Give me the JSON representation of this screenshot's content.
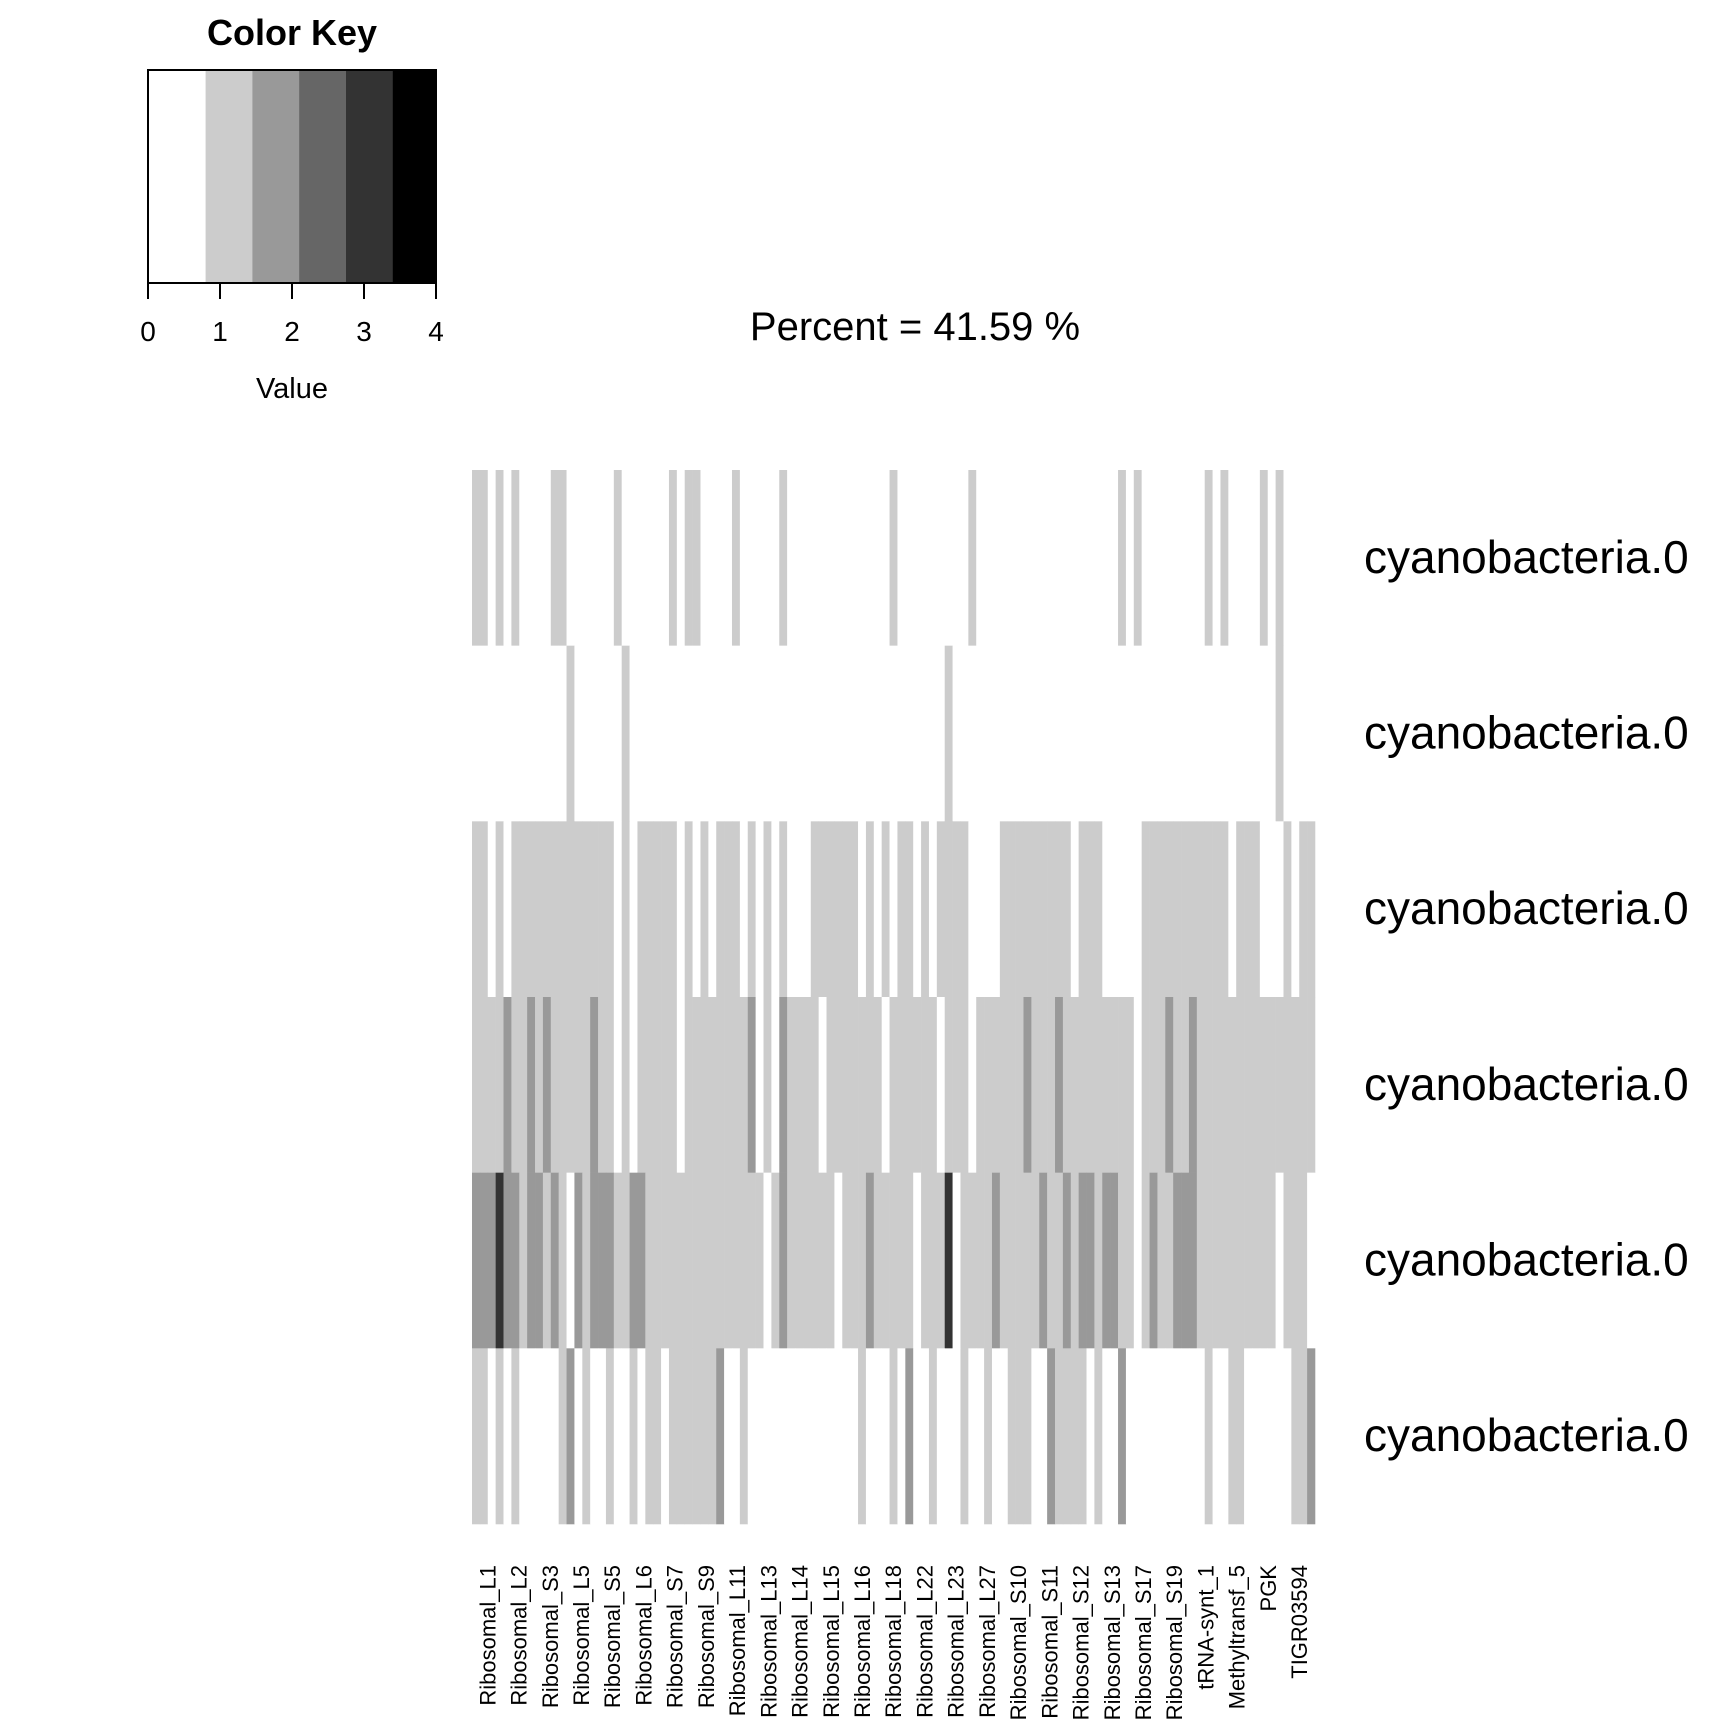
{
  "chart_data": {
    "type": "heatmap",
    "title": "Percent =  41.59 %",
    "color_key": {
      "title": "Color Key",
      "xlabel": "Value",
      "ticks": [
        "0",
        "1",
        "2",
        "3",
        "4"
      ],
      "range": [
        0,
        4
      ],
      "bands": [
        {
          "from": 0.0,
          "to": 0.8,
          "color": "#ffffff"
        },
        {
          "from": 0.8,
          "to": 1.45,
          "color": "#cccccc"
        },
        {
          "from": 1.45,
          "to": 2.1,
          "color": "#999999"
        },
        {
          "from": 2.1,
          "to": 2.75,
          "color": "#666666"
        },
        {
          "from": 2.75,
          "to": 3.4,
          "color": "#333333"
        },
        {
          "from": 3.4,
          "to": 4.0,
          "color": "#000000"
        }
      ]
    },
    "rows": [
      "cyanobacteria.0",
      "cyanobacteria.0",
      "cyanobacteria.0",
      "cyanobacteria.0",
      "cyanobacteria.0",
      "cyanobacteria.0"
    ],
    "column_labels_visible": [
      "Ribosomal_L1",
      "Ribosomal_L2",
      "Ribosomal_S3",
      "Ribosomal_L5",
      "Ribosomal_S5",
      "Ribosomal_L6",
      "Ribosomal_S7",
      "Ribosomal_S9",
      "Ribosomal_L11",
      "Ribosomal_L13",
      "Ribosomal_L14",
      "Ribosomal_L15",
      "Ribosomal_L16",
      "Ribosomal_L18",
      "Ribosomal_L22",
      "Ribosomal_L23",
      "Ribosomal_L27",
      "Ribosomal_S10",
      "Ribosomal_S11",
      "Ribosomal_S12",
      "Ribosomal_S13",
      "Ribosomal_S17",
      "Ribosomal_S19",
      "tRNA-synt_1",
      "Methyltransf_5",
      "PGK",
      "TIGR03594"
    ],
    "num_columns": 107,
    "values": [
      [
        1,
        1,
        0,
        1,
        0,
        1,
        0,
        0,
        0,
        0,
        1,
        1,
        0,
        0,
        0,
        0,
        0,
        0,
        1,
        0,
        0,
        0,
        0,
        0,
        0,
        1,
        0,
        1,
        1,
        0,
        0,
        0,
        0,
        1,
        0,
        0,
        0,
        0,
        0,
        1,
        0,
        0,
        0,
        0,
        0,
        0,
        0,
        0,
        0,
        0,
        0,
        0,
        0,
        1,
        0,
        0,
        0,
        0,
        0,
        0,
        0,
        0,
        0,
        1,
        0,
        0,
        0,
        0,
        0,
        0,
        0,
        0,
        0,
        0,
        0,
        0,
        0,
        0,
        0,
        0,
        0,
        0,
        1,
        0,
        1,
        0,
        0,
        0,
        0,
        0,
        0,
        0,
        0,
        1,
        0,
        1,
        0,
        0,
        0,
        0,
        1,
        0,
        1,
        0,
        0,
        0,
        0
      ],
      [
        0,
        0,
        0,
        0,
        0,
        0,
        0,
        0,
        0,
        0,
        0,
        0,
        1,
        0,
        0,
        0,
        0,
        0,
        0,
        1,
        0,
        0,
        0,
        0,
        0,
        0,
        0,
        0,
        0,
        0,
        0,
        0,
        0,
        0,
        0,
        0,
        0,
        0,
        0,
        0,
        0,
        0,
        0,
        0,
        0,
        0,
        0,
        0,
        0,
        0,
        0,
        0,
        0,
        0,
        0,
        0,
        0,
        0,
        0,
        0,
        1,
        0,
        0,
        0,
        0,
        0,
        0,
        0,
        0,
        0,
        0,
        0,
        0,
        0,
        0,
        0,
        0,
        0,
        0,
        0,
        0,
        0,
        0,
        0,
        0,
        0,
        0,
        0,
        0,
        0,
        0,
        0,
        0,
        0,
        0,
        0,
        0,
        0,
        0,
        0,
        0,
        0,
        1,
        0,
        0,
        0,
        0
      ],
      [
        1,
        1,
        0,
        1,
        0,
        1,
        1,
        1,
        1,
        1,
        1,
        1,
        1,
        1,
        1,
        1,
        1,
        1,
        0,
        1,
        0,
        1,
        1,
        1,
        1,
        1,
        0,
        1,
        0,
        1,
        0,
        1,
        1,
        1,
        0,
        1,
        0,
        1,
        0,
        1,
        0,
        0,
        0,
        1,
        1,
        1,
        1,
        1,
        1,
        0,
        1,
        0,
        1,
        0,
        1,
        1,
        0,
        1,
        0,
        1,
        1,
        1,
        1,
        0,
        0,
        0,
        0,
        1,
        1,
        1,
        1,
        1,
        1,
        1,
        1,
        1,
        0,
        1,
        1,
        1,
        0,
        0,
        0,
        0,
        0,
        1,
        1,
        1,
        1,
        1,
        1,
        1,
        1,
        1,
        1,
        1,
        0,
        1,
        1,
        1,
        0,
        0,
        0,
        1,
        0,
        1,
        1
      ],
      [
        1,
        1,
        1,
        1,
        2,
        1,
        1,
        2,
        1,
        2,
        1,
        1,
        1,
        1,
        1,
        2,
        1,
        1,
        0,
        1,
        0,
        1,
        1,
        1,
        1,
        1,
        0,
        1,
        1,
        1,
        1,
        1,
        1,
        1,
        1,
        2,
        0,
        1,
        0,
        2,
        1,
        1,
        1,
        1,
        0,
        1,
        1,
        1,
        1,
        1,
        1,
        1,
        0,
        1,
        1,
        1,
        1,
        1,
        1,
        0,
        1,
        1,
        1,
        0,
        1,
        1,
        1,
        1,
        1,
        1,
        2,
        1,
        1,
        1,
        2,
        1,
        1,
        1,
        1,
        1,
        1,
        1,
        1,
        1,
        0,
        1,
        1,
        1,
        2,
        1,
        1,
        2,
        1,
        1,
        1,
        1,
        1,
        1,
        1,
        1,
        1,
        1,
        1,
        1,
        1,
        1,
        1
      ],
      [
        2,
        2,
        2,
        3,
        2,
        2,
        1,
        2,
        2,
        1,
        2,
        1,
        0,
        2,
        1,
        2,
        2,
        2,
        1,
        1,
        2,
        2,
        1,
        1,
        1,
        1,
        1,
        1,
        1,
        1,
        1,
        1,
        1,
        1,
        1,
        1,
        1,
        0,
        1,
        2,
        1,
        1,
        1,
        1,
        1,
        1,
        0,
        1,
        1,
        1,
        2,
        1,
        1,
        1,
        1,
        1,
        0,
        1,
        1,
        1,
        3,
        0,
        1,
        1,
        1,
        1,
        2,
        1,
        1,
        1,
        1,
        1,
        2,
        1,
        1,
        2,
        1,
        2,
        2,
        1,
        2,
        2,
        1,
        1,
        0,
        1,
        2,
        1,
        1,
        2,
        2,
        2,
        1,
        1,
        1,
        1,
        1,
        1,
        1,
        1,
        1,
        1,
        0,
        1,
        1,
        1,
        0
      ],
      [
        1,
        1,
        0,
        1,
        0,
        1,
        0,
        0,
        0,
        0,
        0,
        1,
        2,
        0,
        1,
        0,
        0,
        1,
        0,
        0,
        1,
        0,
        1,
        1,
        0,
        1,
        1,
        1,
        1,
        1,
        1,
        2,
        0,
        0,
        1,
        0,
        0,
        0,
        0,
        0,
        0,
        0,
        0,
        0,
        0,
        0,
        0,
        0,
        0,
        1,
        0,
        0,
        0,
        1,
        0,
        2,
        0,
        0,
        1,
        0,
        0,
        0,
        1,
        0,
        0,
        1,
        0,
        0,
        1,
        1,
        1,
        0,
        0,
        2,
        1,
        1,
        1,
        1,
        0,
        1,
        0,
        0,
        2,
        0,
        0,
        0,
        0,
        0,
        0,
        0,
        0,
        0,
        0,
        1,
        0,
        0,
        1,
        1,
        0,
        0,
        0,
        0,
        0,
        0,
        1,
        1,
        2
      ]
    ]
  }
}
